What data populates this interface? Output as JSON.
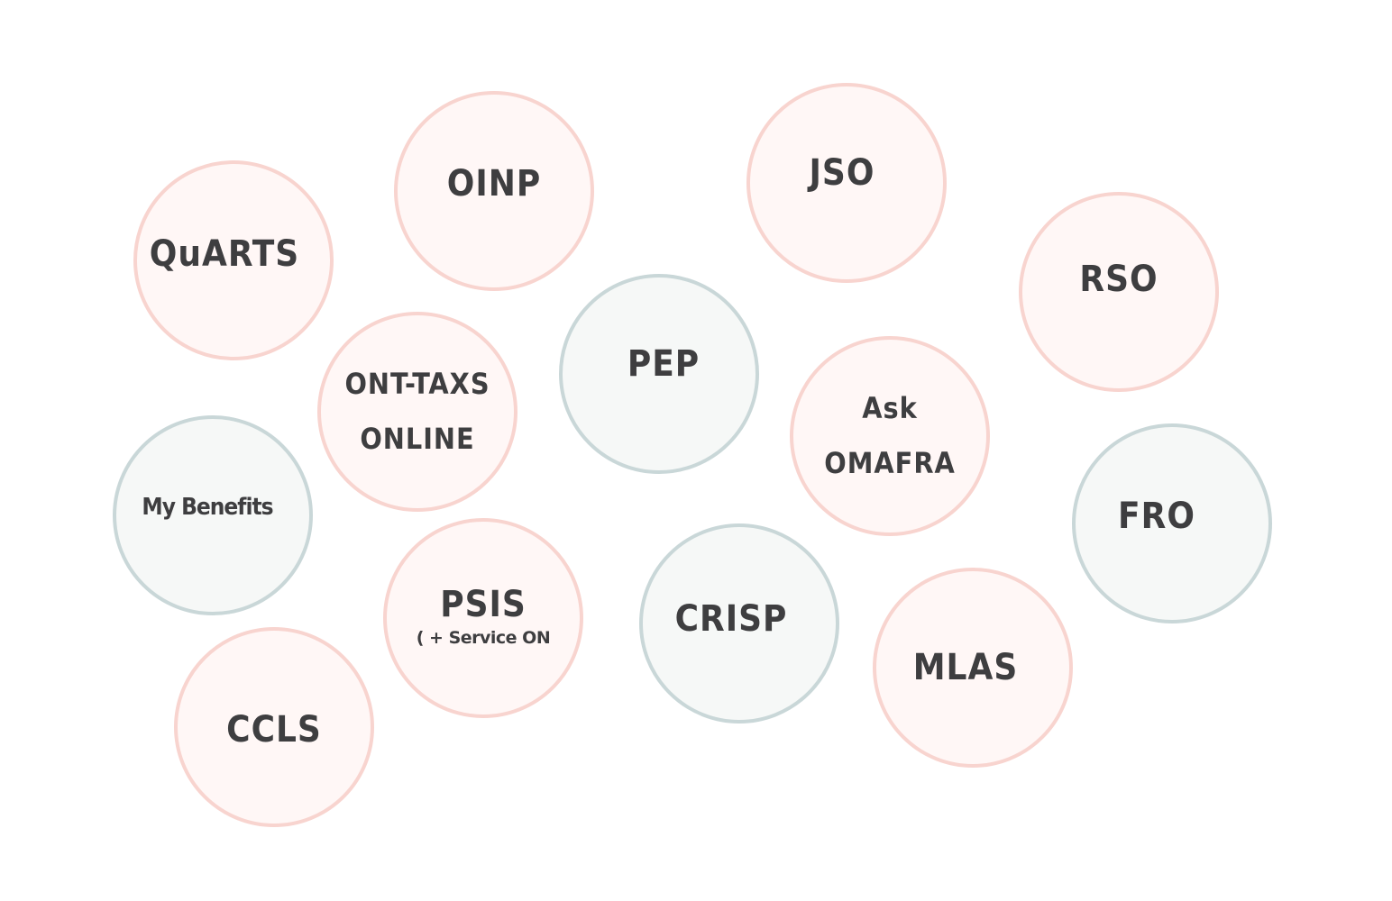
{
  "bubbles": [
    {
      "id": "quarts",
      "label": "QuARTS",
      "style": "pink"
    },
    {
      "id": "oinp",
      "label": "OINP",
      "style": "pink"
    },
    {
      "id": "jso",
      "label": "JSO",
      "style": "pink"
    },
    {
      "id": "rso",
      "label": "RSO",
      "style": "pink"
    },
    {
      "id": "ont-tax",
      "label": "ONT-TAXS",
      "label2": "ONLINE",
      "style": "pink"
    },
    {
      "id": "pep",
      "label": "PEP",
      "style": "grey"
    },
    {
      "id": "ask-omafra",
      "label": "Ask",
      "label2": "OMAFRA",
      "style": "pink"
    },
    {
      "id": "my-benefits",
      "label": "My Benefits",
      "style": "grey"
    },
    {
      "id": "fro",
      "label": "FRO",
      "style": "grey"
    },
    {
      "id": "psis",
      "label": "PSIS",
      "sublabel": "( + Service ON",
      "style": "pink"
    },
    {
      "id": "crisp",
      "label": "CRISP",
      "style": "grey"
    },
    {
      "id": "mlas",
      "label": "MLAS",
      "style": "pink"
    },
    {
      "id": "ccls",
      "label": "CCLS",
      "style": "pink"
    }
  ],
  "colors": {
    "pink_border": "#f8d4cf",
    "pink_fill": "#fff7f6",
    "grey_border": "#c9d7d8",
    "grey_fill": "#f6f8f7",
    "text": "#3e3e40"
  }
}
